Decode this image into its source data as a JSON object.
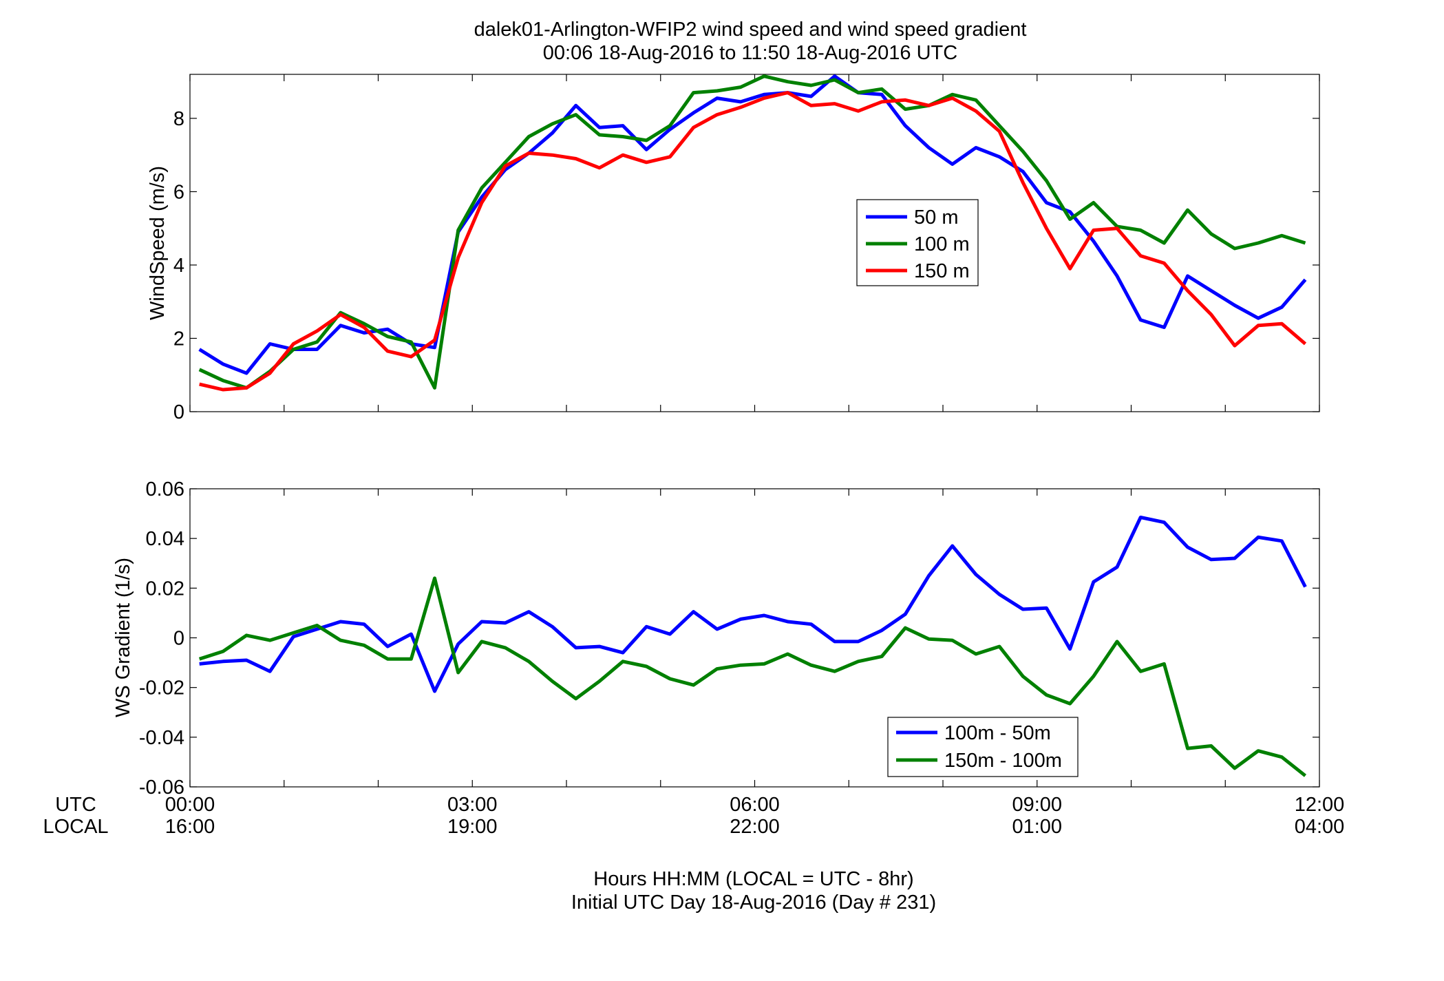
{
  "chart_data": [
    {
      "type": "line",
      "title": "dalek01-Arlington-WFIP2  wind speed and wind speed gradient",
      "subtitle": "00:06 18-Aug-2016 to 11:50 18-Aug-2016  UTC",
      "ylabel": "WindSpeed (m/s)",
      "xlim": [
        0,
        12
      ],
      "ylim": [
        0,
        9.2
      ],
      "yticks": [
        0,
        2,
        4,
        6,
        8
      ],
      "ytick_labels": [
        "0",
        "2",
        "4",
        "6",
        "8"
      ],
      "legend_position": "center-right",
      "x": [
        0.1,
        0.35,
        0.6,
        0.85,
        1.1,
        1.35,
        1.6,
        1.85,
        2.1,
        2.35,
        2.6,
        2.85,
        3.1,
        3.35,
        3.6,
        3.85,
        4.1,
        4.35,
        4.6,
        4.85,
        5.1,
        5.35,
        5.6,
        5.85,
        6.1,
        6.35,
        6.6,
        6.85,
        7.1,
        7.35,
        7.6,
        7.85,
        8.1,
        8.35,
        8.6,
        8.85,
        9.1,
        9.35,
        9.6,
        9.85,
        10.1,
        10.35,
        10.6,
        10.85,
        11.1,
        11.35,
        11.6,
        11.85
      ],
      "series": [
        {
          "name": "50 m",
          "color": "#0000ff",
          "values": [
            1.7,
            1.3,
            1.05,
            1.85,
            1.7,
            1.7,
            2.35,
            2.15,
            2.25,
            1.85,
            1.75,
            4.9,
            5.85,
            6.6,
            7.05,
            7.6,
            8.35,
            7.75,
            7.8,
            7.15,
            7.7,
            8.15,
            8.55,
            8.45,
            8.65,
            8.7,
            8.6,
            9.15,
            8.7,
            8.65,
            7.8,
            7.2,
            6.75,
            7.2,
            6.95,
            6.55,
            5.7,
            5.45,
            4.65,
            3.7,
            2.5,
            2.3,
            3.7,
            3.3,
            2.9,
            2.55,
            2.85,
            3.6
          ]
        },
        {
          "name": "100 m",
          "color": "#008000",
          "values": [
            1.15,
            0.85,
            0.65,
            1.1,
            1.7,
            1.9,
            2.7,
            2.4,
            2.05,
            1.9,
            0.65,
            4.95,
            6.1,
            6.8,
            7.5,
            7.85,
            8.1,
            7.55,
            7.5,
            7.4,
            7.8,
            8.7,
            8.75,
            8.85,
            9.15,
            9.0,
            8.9,
            9.05,
            8.7,
            8.8,
            8.25,
            8.35,
            8.65,
            8.5,
            7.8,
            7.1,
            6.3,
            5.25,
            5.7,
            5.05,
            4.95,
            4.6,
            5.5,
            4.85,
            4.45,
            4.6,
            4.8,
            4.6
          ]
        },
        {
          "name": "150 m",
          "color": "#ff0000",
          "values": [
            0.75,
            0.6,
            0.65,
            1.05,
            1.85,
            2.2,
            2.65,
            2.3,
            1.65,
            1.5,
            1.95,
            4.2,
            5.7,
            6.7,
            7.05,
            7.0,
            6.9,
            6.65,
            7.0,
            6.8,
            6.95,
            7.75,
            8.1,
            8.3,
            8.55,
            8.7,
            8.35,
            8.4,
            8.2,
            8.45,
            8.5,
            8.35,
            8.55,
            8.2,
            7.65,
            6.25,
            5.0,
            3.9,
            4.95,
            5.0,
            4.25,
            4.05,
            3.3,
            2.65,
            1.8,
            2.35,
            2.4,
            1.85
          ]
        }
      ]
    },
    {
      "type": "line",
      "ylabel": "WS Gradient (1/s)",
      "xlabel": "Hours HH:MM  (LOCAL = UTC - 8hr)",
      "xlabel2": "Initial UTC Day 18-Aug-2016 (Day # 231)",
      "xlim": [
        0,
        12
      ],
      "ylim": [
        -0.06,
        0.06
      ],
      "yticks": [
        -0.06,
        -0.04,
        -0.02,
        0,
        0.02,
        0.04,
        0.06
      ],
      "ytick_labels": [
        "-0.06",
        "-0.04",
        "-0.02",
        "0",
        "0.02",
        "0.04",
        "0.06"
      ],
      "x_row_labels": [
        "UTC",
        "LOCAL"
      ],
      "xticks": [
        0,
        3,
        6,
        9,
        12
      ],
      "xtick_labels_utc": [
        "00:00",
        "03:00",
        "06:00",
        "09:00",
        "12:00"
      ],
      "xtick_labels_local": [
        "16:00",
        "19:00",
        "22:00",
        "01:00",
        "04:00"
      ],
      "legend_position": "bottom-center-right",
      "x": [
        0.1,
        0.35,
        0.6,
        0.85,
        1.1,
        1.35,
        1.6,
        1.85,
        2.1,
        2.35,
        2.6,
        2.85,
        3.1,
        3.35,
        3.6,
        3.85,
        4.1,
        4.35,
        4.6,
        4.85,
        5.1,
        5.35,
        5.6,
        5.85,
        6.1,
        6.35,
        6.6,
        6.85,
        7.1,
        7.35,
        7.6,
        7.85,
        8.1,
        8.35,
        8.6,
        8.85,
        9.1,
        9.35,
        9.6,
        9.85,
        10.1,
        10.35,
        10.6,
        10.85,
        11.1,
        11.35,
        11.6,
        11.85
      ],
      "series": [
        {
          "name": "100m - 50m",
          "color": "#0000ff",
          "values": [
            -0.0105,
            -0.0095,
            -0.009,
            -0.0135,
            0.0005,
            0.0035,
            0.0065,
            0.0055,
            -0.0035,
            0.0015,
            -0.0215,
            -0.0025,
            0.0065,
            0.006,
            0.0105,
            0.0045,
            -0.004,
            -0.0035,
            -0.006,
            0.0045,
            0.0015,
            0.0105,
            0.0035,
            0.0075,
            0.009,
            0.0065,
            0.0055,
            -0.0015,
            -0.0015,
            0.003,
            0.0095,
            0.025,
            0.037,
            0.0255,
            0.0175,
            0.0115,
            0.012,
            -0.0045,
            0.0225,
            0.0285,
            0.0485,
            0.0465,
            0.0365,
            0.0315,
            0.032,
            0.0405,
            0.039,
            0.0205
          ]
        },
        {
          "name": "150m - 100m",
          "color": "#008000",
          "values": [
            -0.0085,
            -0.0055,
            0.001,
            -0.001,
            0.002,
            0.005,
            -0.001,
            -0.003,
            -0.0085,
            -0.0085,
            0.024,
            -0.014,
            -0.0015,
            -0.004,
            -0.0095,
            -0.0175,
            -0.0245,
            -0.0175,
            -0.0095,
            -0.0115,
            -0.0165,
            -0.019,
            -0.0125,
            -0.011,
            -0.0105,
            -0.0065,
            -0.011,
            -0.0135,
            -0.0095,
            -0.0075,
            0.004,
            -0.0005,
            -0.001,
            -0.0065,
            -0.0035,
            -0.0155,
            -0.023,
            -0.0265,
            -0.0155,
            -0.0015,
            -0.0135,
            -0.0105,
            -0.0445,
            -0.0435,
            -0.0525,
            -0.0455,
            -0.048,
            -0.0555
          ]
        }
      ]
    }
  ]
}
